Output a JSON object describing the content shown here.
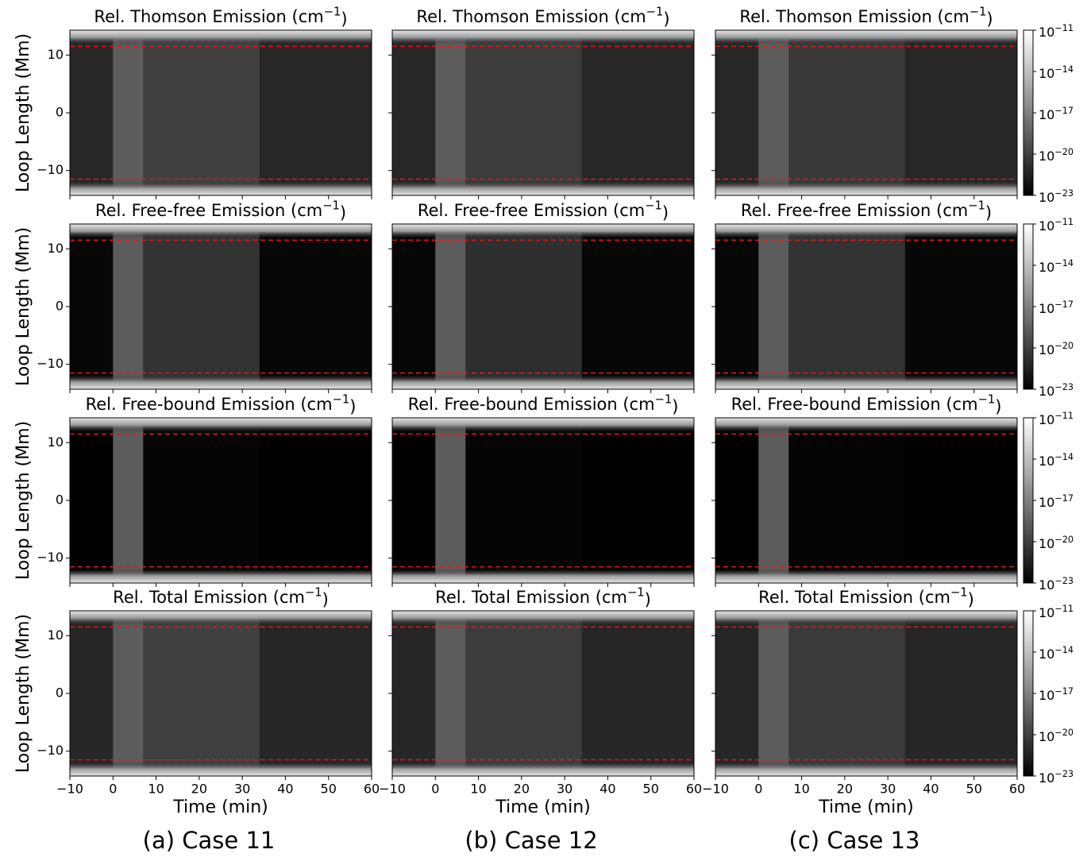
{
  "chart_data": [
    {
      "type": "heatmap",
      "title": "Rel. Thomson Emission (cm−1)",
      "ylabel": "Loop Length (Mm)",
      "xlim": [
        -10,
        60
      ],
      "xticks": [
        -10,
        0,
        10,
        20,
        30,
        40,
        50,
        60
      ],
      "ylim": [
        -14.3,
        14.3
      ],
      "yticks": [
        {
          "value": -10,
          "label": "−10"
        },
        0,
        10
      ],
      "hlines": [
        11.5,
        -11.5
      ],
      "hline_color": "#e31a1c"
    },
    {
      "type": "heatmap",
      "title": "Rel. Thomson Emission (cm−1)",
      "xlim": [
        -10,
        60
      ],
      "xticks": [
        -10,
        0,
        10,
        20,
        30,
        40,
        50,
        60
      ],
      "ylim": [
        -14.3,
        14.3
      ],
      "yticks": [
        -10,
        0,
        10
      ],
      "hlines": [
        11.5,
        -11.5
      ],
      "hline_color": "#e31a1c"
    },
    {
      "type": "heatmap",
      "title": "Rel. Thomson Emission (cm−1)",
      "xlim": [
        -10,
        60
      ],
      "xticks": [
        -10,
        0,
        10,
        20,
        30,
        40,
        50,
        60
      ],
      "ylim": [
        -14.3,
        14.3
      ],
      "yticks": [
        -10,
        0,
        10
      ],
      "hlines": [
        11.5,
        -11.5
      ],
      "hline_color": "#e31a1c",
      "colorbar": {
        "log": true,
        "lim": [
          1e-23,
          1e-11
        ],
        "ticks": [
          {
            "value": 1e-11,
            "label": "10−11"
          },
          {
            "value": 1e-14,
            "label": "10−14"
          },
          {
            "value": 1e-17,
            "label": "10−17"
          },
          {
            "value": 1e-20,
            "label": "10−20"
          },
          {
            "value": 1e-23,
            "label": "10−23"
          }
        ]
      }
    },
    {
      "type": "heatmap",
      "title": "Rel. Free-free Emission (cm−1)",
      "ylabel": "Loop Length (Mm)",
      "xlim": [
        -10,
        60
      ],
      "xticks": [
        -10,
        0,
        10,
        20,
        30,
        40,
        50,
        60
      ],
      "ylim": [
        -14.3,
        14.3
      ],
      "yticks": [
        {
          "value": -10,
          "label": "−10"
        },
        0,
        10
      ],
      "hlines": [
        11.5,
        -11.5
      ],
      "hline_color": "#e31a1c"
    },
    {
      "type": "heatmap",
      "title": "Rel. Free-free Emission (cm−1)",
      "xlim": [
        -10,
        60
      ],
      "xticks": [
        -10,
        0,
        10,
        20,
        30,
        40,
        50,
        60
      ],
      "ylim": [
        -14.3,
        14.3
      ],
      "yticks": [
        -10,
        0,
        10
      ],
      "hlines": [
        11.5,
        -11.5
      ],
      "hline_color": "#e31a1c"
    },
    {
      "type": "heatmap",
      "title": "Rel. Free-free Emission (cm−1)",
      "xlim": [
        -10,
        60
      ],
      "xticks": [
        -10,
        0,
        10,
        20,
        30,
        40,
        50,
        60
      ],
      "ylim": [
        -14.3,
        14.3
      ],
      "yticks": [
        -10,
        0,
        10
      ],
      "hlines": [
        11.5,
        -11.5
      ],
      "hline_color": "#e31a1c",
      "colorbar": {
        "log": true,
        "lim": [
          1e-23,
          1e-11
        ],
        "ticks": [
          {
            "value": 1e-11,
            "label": "10−11"
          },
          {
            "value": 1e-14,
            "label": "10−14"
          },
          {
            "value": 1e-17,
            "label": "10−17"
          },
          {
            "value": 1e-20,
            "label": "10−20"
          },
          {
            "value": 1e-23,
            "label": "10−23"
          }
        ]
      }
    },
    {
      "type": "heatmap",
      "title": "Rel. Free-bound Emission (cm−1)",
      "ylabel": "Loop Length (Mm)",
      "xlim": [
        -10,
        60
      ],
      "xticks": [
        -10,
        0,
        10,
        20,
        30,
        40,
        50,
        60
      ],
      "ylim": [
        -14.3,
        14.3
      ],
      "yticks": [
        {
          "value": -10,
          "label": "−10"
        },
        0,
        10
      ],
      "hlines": [
        11.5,
        -11.5
      ],
      "hline_color": "#e31a1c"
    },
    {
      "type": "heatmap",
      "title": "Rel. Free-bound Emission (cm−1)",
      "xlim": [
        -10,
        60
      ],
      "xticks": [
        -10,
        0,
        10,
        20,
        30,
        40,
        50,
        60
      ],
      "ylim": [
        -14.3,
        14.3
      ],
      "yticks": [
        -10,
        0,
        10
      ],
      "hlines": [
        11.5,
        -11.5
      ],
      "hline_color": "#e31a1c"
    },
    {
      "type": "heatmap",
      "title": "Rel. Free-bound Emission (cm−1)",
      "xlim": [
        -10,
        60
      ],
      "xticks": [
        -10,
        0,
        10,
        20,
        30,
        40,
        50,
        60
      ],
      "ylim": [
        -14.3,
        14.3
      ],
      "yticks": [
        -10,
        0,
        10
      ],
      "hlines": [
        11.5,
        -11.5
      ],
      "hline_color": "#e31a1c",
      "colorbar": {
        "log": true,
        "lim": [
          1e-23,
          1e-11
        ],
        "ticks": [
          {
            "value": 1e-11,
            "label": "10−11"
          },
          {
            "value": 1e-14,
            "label": "10−14"
          },
          {
            "value": 1e-17,
            "label": "10−17"
          },
          {
            "value": 1e-20,
            "label": "10−20"
          },
          {
            "value": 1e-23,
            "label": "10−23"
          }
        ]
      }
    },
    {
      "type": "heatmap",
      "title": "Rel. Total Emission (cm−1)",
      "ylabel": "Loop Length (Mm)",
      "xlabel": "Time (min)",
      "xlim": [
        -10,
        60
      ],
      "xticks": [
        {
          "value": -10,
          "label": "−10"
        },
        0,
        10,
        20,
        30,
        40,
        50,
        60
      ],
      "ylim": [
        -14.3,
        14.3
      ],
      "yticks": [
        {
          "value": -10,
          "label": "−10"
        },
        0,
        10
      ],
      "hlines": [
        11.5,
        -11.5
      ],
      "hline_color": "#e31a1c"
    },
    {
      "type": "heatmap",
      "title": "Rel. Total Emission (cm−1)",
      "xlabel": "Time (min)",
      "xlim": [
        -10,
        60
      ],
      "xticks": [
        {
          "value": -10,
          "label": "−10"
        },
        0,
        10,
        20,
        30,
        40,
        50,
        60
      ],
      "ylim": [
        -14.3,
        14.3
      ],
      "yticks": [
        -10,
        0,
        10
      ],
      "hlines": [
        11.5,
        -11.5
      ],
      "hline_color": "#e31a1c"
    },
    {
      "type": "heatmap",
      "title": "Rel. Total Emission (cm−1)",
      "xlabel": "Time (min)",
      "xlim": [
        -10,
        60
      ],
      "xticks": [
        {
          "value": -10,
          "label": "−10"
        },
        0,
        10,
        20,
        30,
        40,
        50,
        60
      ],
      "ylim": [
        -14.3,
        14.3
      ],
      "yticks": [
        -10,
        0,
        10
      ],
      "hlines": [
        11.5,
        -11.5
      ],
      "hline_color": "#e31a1c",
      "colorbar": {
        "log": true,
        "lim": [
          1e-23,
          1e-11
        ],
        "ticks": [
          {
            "value": 1e-11,
            "label": "10−11"
          },
          {
            "value": 1e-14,
            "label": "10−14"
          },
          {
            "value": 1e-17,
            "label": "10−17"
          },
          {
            "value": 1e-20,
            "label": "10−20"
          },
          {
            "value": 1e-23,
            "label": "10−23"
          }
        ]
      }
    }
  ],
  "captions": [
    "(a) Case 11",
    "(b) Case 12",
    "(c) Case 13"
  ]
}
